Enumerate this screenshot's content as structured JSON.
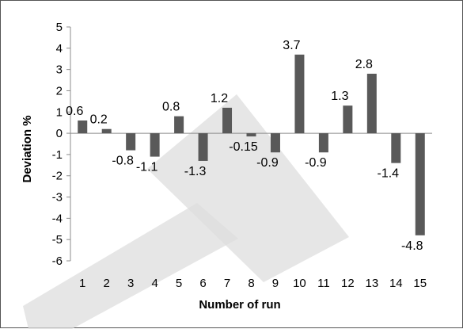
{
  "chart_data": {
    "type": "bar",
    "xlabel": "Number of run",
    "ylabel": "Deviation %",
    "ylim": [
      -6,
      5
    ],
    "yticks": [
      "5",
      "4",
      "3",
      "2",
      "1",
      "0",
      "-1",
      "-2",
      "-3",
      "-4",
      "-5",
      "-6"
    ],
    "categories": [
      "1",
      "2",
      "3",
      "4",
      "5",
      "6",
      "7",
      "8",
      "9",
      "10",
      "11",
      "12",
      "13",
      "14",
      "15"
    ],
    "values": [
      0.6,
      0.2,
      -0.8,
      -1.1,
      0.8,
      -1.3,
      1.2,
      -0.15,
      -0.9,
      3.7,
      -0.9,
      1.3,
      2.8,
      -1.4,
      -4.8
    ],
    "data_labels": [
      "0.6",
      "0.2",
      "-0.8",
      "-1.1",
      "0.8",
      "-1.3",
      "1.2",
      "-0.15",
      "-0.9",
      "3.7",
      "-0.9",
      "1.3",
      "2.8",
      "-1.4",
      "-4.8"
    ],
    "bar_color": "#595959",
    "grid": false,
    "legend": "none"
  }
}
